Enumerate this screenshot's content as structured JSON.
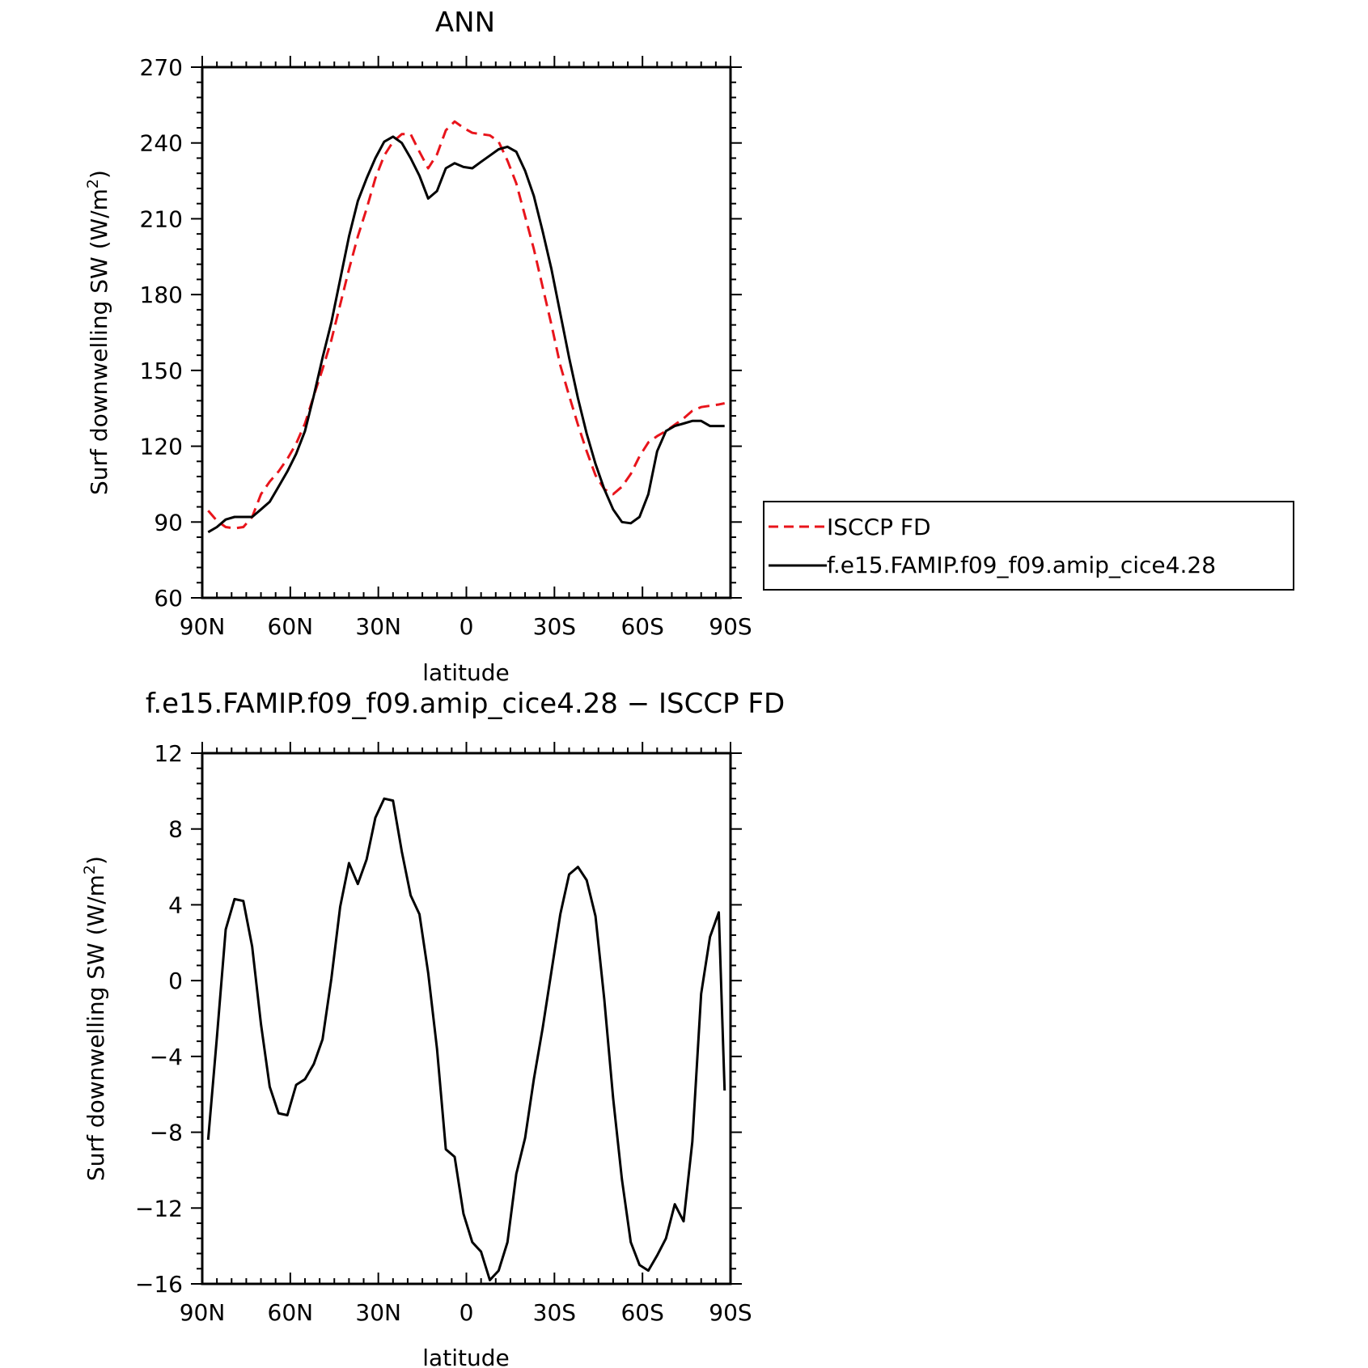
{
  "chart_data": [
    {
      "type": "line",
      "title": "ANN",
      "xlabel": "latitude",
      "ylabel": "Surf downwelling SW (W/m",
      "ylabel_sup": "2",
      "ylabel_close": ")",
      "xlim": [
        90,
        -90
      ],
      "ylim": [
        60,
        270
      ],
      "x_ticks": [
        90,
        60,
        30,
        0,
        -30,
        -60,
        -90
      ],
      "x_tick_labels": [
        "90N",
        "60N",
        "30N",
        "0",
        "30S",
        "60S",
        "90S"
      ],
      "y_ticks": [
        60,
        90,
        120,
        150,
        180,
        210,
        240,
        270
      ],
      "y_tick_labels": [
        "60",
        "90",
        "120",
        "150",
        "180",
        "210",
        "240",
        "270"
      ],
      "legend_position": "right",
      "series": [
        {
          "name": "ISCCP FD",
          "color": "#e8141b",
          "dash": "dashed",
          "x": [
            88,
            85,
            82,
            79,
            76,
            73,
            70,
            67,
            64,
            61,
            58,
            55,
            52,
            49,
            46,
            43,
            40,
            37,
            34,
            31,
            28,
            25,
            22,
            19,
            16,
            13,
            10,
            7,
            4,
            1,
            -2,
            -5,
            -8,
            -11,
            -14,
            -17,
            -20,
            -23,
            -26,
            -29,
            -32,
            -35,
            -38,
            -41,
            -44,
            -47,
            -50,
            -53,
            -56,
            -59,
            -62,
            -65,
            -68,
            -71,
            -74,
            -77,
            -80,
            -83,
            -86,
            -88
          ],
          "values": [
            94.5,
            90.5,
            88.0,
            87.5,
            88.0,
            92.0,
            101.0,
            106.0,
            110.0,
            115.0,
            121.0,
            129.0,
            140.0,
            150.5,
            162.0,
            176.0,
            190.0,
            203.0,
            214.0,
            226.0,
            235.0,
            240.5,
            243.5,
            243.5,
            236.5,
            230.0,
            235.5,
            245.0,
            248.5,
            246.0,
            244.0,
            243.5,
            243.0,
            240.5,
            233.0,
            224.0,
            211.0,
            198.0,
            183.0,
            168.0,
            152.0,
            140.0,
            128.5,
            118.0,
            108.5,
            103.0,
            101.0,
            104.0,
            109.0,
            116.0,
            121.5,
            124.0,
            126.0,
            128.5,
            131.0,
            134.0,
            135.5,
            136.0,
            136.5,
            137.0
          ]
        },
        {
          "name": "f.e15.FAMIP.f09_f09.amip_cice4.28",
          "color": "#000000",
          "dash": "solid",
          "x": [
            88,
            85,
            82,
            79,
            76,
            73,
            70,
            67,
            64,
            61,
            58,
            55,
            52,
            49,
            46,
            43,
            40,
            37,
            34,
            31,
            28,
            25,
            22,
            19,
            16,
            13,
            10,
            7,
            4,
            1,
            -2,
            -5,
            -8,
            -11,
            -14,
            -17,
            -20,
            -23,
            -26,
            -29,
            -32,
            -35,
            -38,
            -41,
            -44,
            -47,
            -50,
            -53,
            -56,
            -59,
            -62,
            -65,
            -68,
            -71,
            -74,
            -77,
            -80,
            -83,
            -86,
            -88
          ],
          "values": [
            86.0,
            88.0,
            91.0,
            92.0,
            92.0,
            92.0,
            95.0,
            98.0,
            104.0,
            110.0,
            117.0,
            126.0,
            140.0,
            155.0,
            169.0,
            186.0,
            203.0,
            217.0,
            226.0,
            234.0,
            240.5,
            242.5,
            240.0,
            234.0,
            227.0,
            218.0,
            221.0,
            230.0,
            232.0,
            230.5,
            230.0,
            232.5,
            235.0,
            237.5,
            238.5,
            236.5,
            229.0,
            219.0,
            205.0,
            190.0,
            172.5,
            155.0,
            139.0,
            125.0,
            113.0,
            103.0,
            95.0,
            90.0,
            89.5,
            92.0,
            101.0,
            118.0,
            126.0,
            128.0,
            129.0,
            130.0,
            130.0,
            128.0,
            128.0,
            128.0
          ]
        }
      ]
    },
    {
      "type": "line",
      "title": "f.e15.FAMIP.f09_f09.amip_cice4.28 − ISCCP FD",
      "xlabel": "latitude",
      "ylabel": "Surf downwelling SW (W/m",
      "ylabel_sup": "2",
      "ylabel_close": ")",
      "xlim": [
        90,
        -90
      ],
      "ylim": [
        -16,
        12
      ],
      "x_ticks": [
        90,
        60,
        30,
        0,
        -30,
        -60,
        -90
      ],
      "x_tick_labels": [
        "90N",
        "60N",
        "30N",
        "0",
        "30S",
        "60S",
        "90S"
      ],
      "y_ticks": [
        -16,
        -12,
        -8,
        -4,
        0,
        4,
        8,
        12
      ],
      "y_tick_labels": [
        "−16",
        "−12",
        "−8",
        "−4",
        "0",
        "4",
        "8",
        "12"
      ],
      "series": [
        {
          "color": "#000000",
          "dash": "solid",
          "x": [
            88,
            85,
            82,
            79,
            76,
            73,
            70,
            67,
            64,
            61,
            58,
            55,
            52,
            49,
            46,
            43,
            40,
            37,
            34,
            31,
            28,
            25,
            22,
            19,
            16,
            13,
            10,
            7,
            4,
            1,
            -2,
            -5,
            -8,
            -11,
            -14,
            -17,
            -20,
            -23,
            -26,
            -29,
            -32,
            -35,
            -38,
            -41,
            -44,
            -47,
            -50,
            -53,
            -56,
            -59,
            -62,
            -65,
            -68,
            -71,
            -74,
            -77,
            -80,
            -83,
            -86,
            -88
          ],
          "values": [
            -8.4,
            -3.0,
            2.7,
            4.3,
            4.2,
            1.8,
            -2.3,
            -5.6,
            -7.0,
            -7.1,
            -5.5,
            -5.2,
            -4.4,
            -3.1,
            0.1,
            3.9,
            6.2,
            5.1,
            6.4,
            8.6,
            9.6,
            9.5,
            6.8,
            4.5,
            3.5,
            0.4,
            -3.6,
            -8.9,
            -9.3,
            -12.3,
            -13.8,
            -14.3,
            -15.8,
            -15.3,
            -13.8,
            -10.2,
            -8.3,
            -5.2,
            -2.5,
            0.5,
            3.5,
            5.6,
            6.0,
            5.3,
            3.4,
            -1.0,
            -6.2,
            -10.5,
            -13.8,
            -15.0,
            -15.3,
            -14.5,
            -13.6,
            -11.8,
            -12.7,
            -8.5,
            -0.7,
            2.3,
            3.6,
            -5.8
          ]
        }
      ]
    }
  ]
}
